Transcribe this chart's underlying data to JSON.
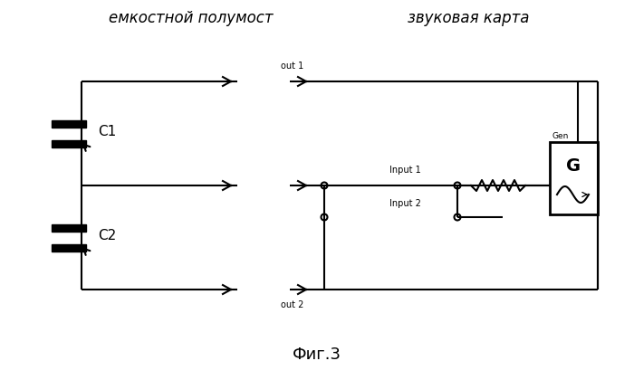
{
  "title_left": "емкостной полумост",
  "title_right": "звуковая карта",
  "caption": "Фиг.3",
  "label_C1": "C1",
  "label_C2": "C2",
  "label_out1": "out 1",
  "label_out2": "out 2",
  "label_input1": "Input 1",
  "label_input2": "Input 2",
  "label_Gen": "Gen",
  "label_G": "G",
  "bg_color": "#ffffff",
  "line_color": "#000000",
  "lw": 1.5
}
